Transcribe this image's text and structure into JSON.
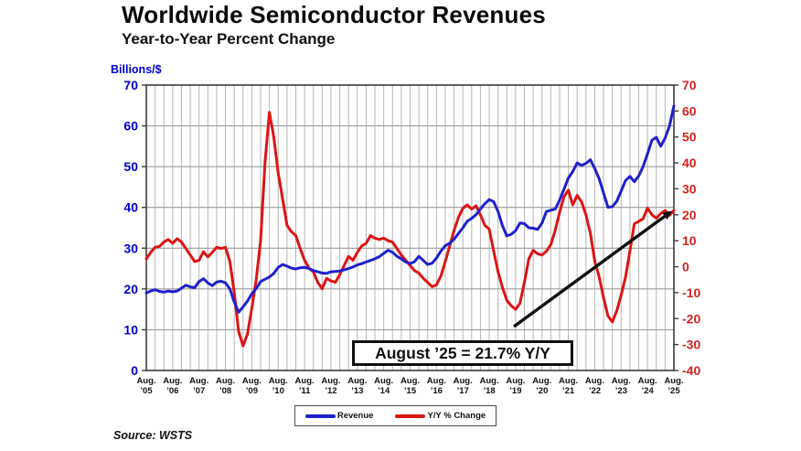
{
  "header": {
    "title": "Worldwide Semiconductor Revenues",
    "subtitle": "Year-to-Year Percent Change",
    "left_axis_unit": "Billions/$"
  },
  "annotation": {
    "text": "August ’25 = 21.7% Y/Y"
  },
  "legend": {
    "items": [
      {
        "label": "Revenue",
        "color": "#1f1fcc"
      },
      {
        "label": "Y/Y % Change",
        "color": "#dd1414"
      }
    ]
  },
  "source": "Source: WSTS",
  "colors": {
    "revenue_line": "#1f1fcc",
    "yoy_line": "#dd1414",
    "left_axis_text": "#0000cc",
    "right_axis_text": "#d42222",
    "grid_vertical": "#b5b5b5",
    "grid_horizontal": "#9a9a9a",
    "frame": "#3c3c3c",
    "arrow": "#101010"
  },
  "chart_data": {
    "type": "line",
    "title": "Worldwide Semiconductor Revenues",
    "subtitle": "Year-to-Year Percent Change",
    "x_start": "Aug 2005",
    "x_end": "Aug 2025",
    "x_step_months": 2,
    "x_tick_month": "Aug.",
    "x_tick_years": [
      "’05",
      "’06",
      "’07",
      "’08",
      "’09",
      "’10",
      "’11",
      "’12",
      "’13",
      "’14",
      "’15",
      "’16",
      "’17",
      "’18",
      "’19",
      "’20",
      "’21",
      "’22",
      "’23",
      "’24",
      "’25"
    ],
    "left_axis": {
      "label": "Billions/$",
      "min": 0,
      "max": 70,
      "ticks": [
        0,
        10,
        20,
        30,
        40,
        50,
        60,
        70
      ]
    },
    "right_axis": {
      "label": "Y/Y % Change",
      "min": -40,
      "max": 70,
      "ticks": [
        -40,
        -30,
        -20,
        -10,
        0,
        10,
        20,
        30,
        40,
        50,
        60,
        70
      ]
    },
    "grid": {
      "vertical_divisions": 60,
      "horizontal_on_left_ticks": true
    },
    "legend_position": "bottom",
    "annotation": "August ’25 = 21.7% Y/Y",
    "series": [
      {
        "name": "Revenue",
        "axis": "left",
        "units": "US$ billions (monthly, 3-mo avg)",
        "color": "#1f1fcc",
        "values": [
          19.0,
          19.5,
          19.8,
          19.4,
          19.2,
          19.5,
          19.3,
          19.5,
          20.2,
          20.9,
          20.5,
          20.3,
          21.8,
          22.5,
          21.5,
          20.8,
          21.7,
          21.9,
          21.5,
          20.0,
          16.8,
          14.3,
          15.6,
          17.0,
          18.8,
          20.1,
          21.8,
          22.4,
          22.9,
          23.8,
          25.3,
          26.0,
          25.6,
          25.1,
          24.9,
          25.2,
          25.3,
          25.0,
          24.5,
          24.2,
          23.9,
          23.8,
          24.2,
          24.3,
          24.4,
          24.7,
          25.0,
          25.4,
          25.9,
          26.2,
          26.6,
          27.0,
          27.4,
          27.9,
          28.7,
          29.5,
          29.0,
          28.0,
          27.4,
          26.6,
          26.2,
          26.7,
          28.0,
          27.0,
          26.0,
          26.3,
          27.6,
          29.3,
          30.6,
          31.2,
          32.2,
          33.6,
          35.0,
          36.6,
          37.3,
          38.2,
          39.6,
          40.9,
          41.9,
          41.4,
          39.0,
          35.5,
          33.0,
          33.4,
          34.3,
          36.2,
          36.0,
          35.0,
          34.9,
          34.6,
          36.2,
          39.0,
          39.3,
          39.6,
          41.8,
          44.5,
          47.2,
          48.8,
          50.9,
          50.3,
          50.8,
          51.7,
          49.5,
          47.0,
          43.5,
          40.0,
          40.2,
          41.5,
          44.0,
          46.6,
          47.6,
          46.3,
          47.7,
          50.0,
          53.1,
          56.5,
          57.2,
          55.0,
          57.0,
          60.0,
          64.9
        ]
      },
      {
        "name": "Y/Y % Change",
        "axis": "right",
        "units": "percent",
        "color": "#dd1414",
        "values": [
          3.0,
          5.5,
          7.5,
          7.8,
          9.5,
          10.5,
          9.0,
          10.8,
          9.5,
          7.0,
          4.5,
          2.0,
          2.5,
          5.8,
          3.8,
          5.5,
          7.5,
          7.0,
          7.5,
          2.0,
          -10.0,
          -25.0,
          -30.5,
          -26.0,
          -16.0,
          -5.0,
          10.0,
          40.0,
          59.5,
          50.0,
          36.0,
          26.0,
          16.0,
          13.5,
          12.0,
          7.0,
          2.5,
          -0.5,
          -2.0,
          -6.0,
          -8.5,
          -4.5,
          -5.5,
          -6.0,
          -3.0,
          0.5,
          4.0,
          2.5,
          5.5,
          8.0,
          9.0,
          12.0,
          11.0,
          10.5,
          11.0,
          10.0,
          9.5,
          7.0,
          4.5,
          2.5,
          0.5,
          -1.5,
          -2.5,
          -4.5,
          -6.0,
          -7.7,
          -7.0,
          -3.5,
          2.0,
          8.0,
          14.0,
          19.0,
          22.5,
          23.8,
          22.2,
          23.5,
          20.0,
          16.0,
          14.5,
          6.0,
          -2.0,
          -8.0,
          -13.0,
          -15.0,
          -16.5,
          -14.0,
          -6.0,
          3.0,
          6.3,
          5.0,
          4.5,
          6.0,
          8.5,
          14.0,
          21.0,
          27.0,
          29.5,
          23.8,
          27.5,
          25.0,
          20.0,
          13.0,
          2.0,
          -4.0,
          -12.0,
          -19.0,
          -21.3,
          -17.0,
          -11.0,
          -4.0,
          6.0,
          16.5,
          17.5,
          18.5,
          22.6,
          20.0,
          18.7,
          20.5,
          21.6,
          19.8,
          21.7
        ]
      }
    ],
    "final_point": {
      "label": "August ’25",
      "yoy_percent": 21.7
    }
  }
}
